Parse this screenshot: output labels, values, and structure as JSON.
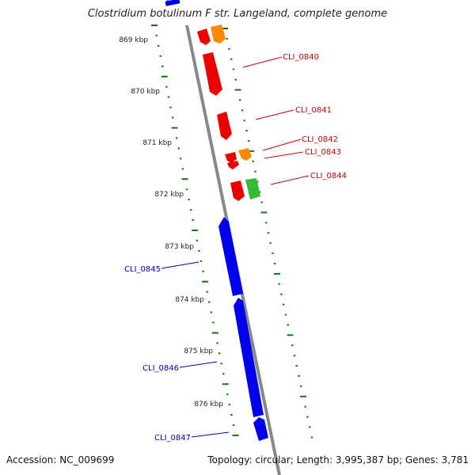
{
  "title": "Clostridium botulinum F str. Langeland, complete genome",
  "footer": {
    "accession": "Accession: NC_009699",
    "topology": "Topology: circular; Length: 3,995,387 bp; Genes: 3,781"
  },
  "ruler_labels": [
    "869 kbp",
    "870 kbp",
    "871 kbp",
    "872 kbp",
    "873 kbp",
    "874 kbp",
    "875 kbp",
    "876 kbp"
  ],
  "gene_labels": {
    "forward": [
      "CLI_0840",
      "CLI_0841",
      "CLI_0842",
      "CLI_0843",
      "CLI_0844"
    ],
    "reverse": [
      "CLI_0845",
      "CLI_0846",
      "CLI_0847"
    ]
  },
  "colors": {
    "forward_label": "#cc0000",
    "reverse_label": "#0000bb",
    "cds_red": "#ee0000",
    "cds_orange": "#ff8800",
    "cds_green": "#33bb33",
    "cds_blue": "#0000ee",
    "backbone": "#888888",
    "ticks": "#117711"
  }
}
